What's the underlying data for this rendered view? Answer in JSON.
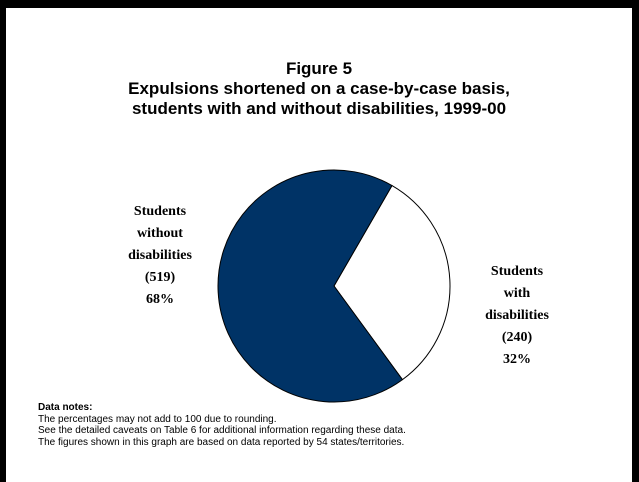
{
  "chart_data": {
    "type": "pie",
    "title_lines": [
      "Figure 5",
      "Expulsions shortened on a case-by-case basis,",
      "students with and without disabilities, 1999-00"
    ],
    "slices": [
      {
        "label_lines": [
          "Students",
          "with",
          "disabilities"
        ],
        "count_text": "(240)",
        "percent_text": "32%",
        "value": 240,
        "percent": 32,
        "color": "#ffffff"
      },
      {
        "label_lines": [
          "Students",
          "without",
          "disabilities"
        ],
        "count_text": "(519)",
        "percent_text": "68%",
        "value": 519,
        "percent": 68,
        "color": "#003366"
      }
    ],
    "start_angle_deg": 30,
    "direction": "clockwise"
  },
  "notes": {
    "heading": "Data notes:",
    "lines": [
      "The percentages may not add to 100 due to rounding.",
      "See the detailed caveats on Table 6 for additional information regarding these data.",
      "The figures shown in this graph are based on data reported by 54 states/territories."
    ]
  }
}
